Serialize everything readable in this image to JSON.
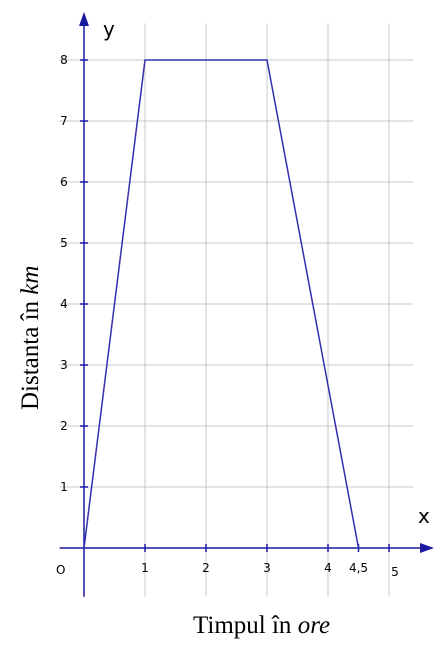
{
  "chart_data": {
    "type": "line",
    "x_axis_letter": "x",
    "y_axis_letter": "y",
    "origin_label": "O",
    "xlabel": "Timpul în",
    "xlabel_unit": "ore",
    "ylabel": "Distanta în",
    "ylabel_unit": "km",
    "x_ticks": [
      {
        "value": 1,
        "label": "1"
      },
      {
        "value": 2,
        "label": "2"
      },
      {
        "value": 3,
        "label": "3"
      },
      {
        "value": 4,
        "label": "4"
      },
      {
        "value": 4.5,
        "label": "4,5"
      },
      {
        "value": 5,
        "label": "5"
      }
    ],
    "y_ticks": [
      {
        "value": 1,
        "label": "1"
      },
      {
        "value": 2,
        "label": "2"
      },
      {
        "value": 3,
        "label": "3"
      },
      {
        "value": 4,
        "label": "4"
      },
      {
        "value": 5,
        "label": "5"
      },
      {
        "value": 6,
        "label": "6"
      },
      {
        "value": 7,
        "label": "7"
      },
      {
        "value": 8,
        "label": "8"
      }
    ],
    "xlim": [
      -0.4,
      5.4
    ],
    "ylim": [
      -0.8,
      8.6
    ],
    "grid": true,
    "series": [
      {
        "points": [
          {
            "x": 0,
            "y": 0
          },
          {
            "x": 1,
            "y": 8
          },
          {
            "x": 3,
            "y": 8
          },
          {
            "x": 4.5,
            "y": 0
          }
        ]
      }
    ],
    "colors": {
      "line": "#3030b0",
      "axis": "#1a1aa0",
      "grid": "#c8c8c8"
    }
  }
}
